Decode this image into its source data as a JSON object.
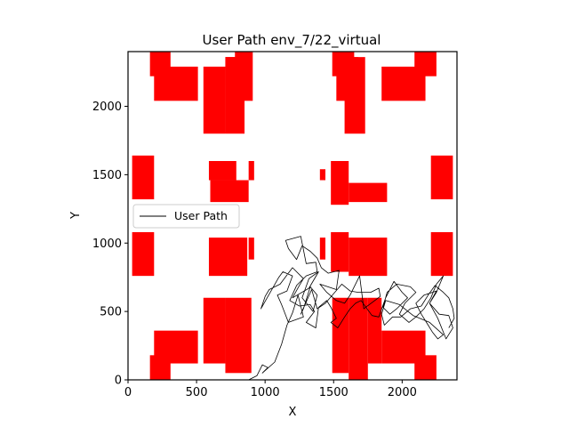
{
  "chart_data": {
    "type": "line",
    "title": "User Path env_7/22_virtual",
    "xlabel": "X",
    "ylabel": "Y",
    "xlim": [
      0,
      2400
    ],
    "ylim": [
      0,
      2400
    ],
    "xticks": [
      0,
      500,
      1000,
      1500,
      2000
    ],
    "yticks": [
      0,
      500,
      1000,
      1500,
      2000
    ],
    "grid": false,
    "legend": {
      "position": "center-left",
      "entries": [
        "User Path"
      ]
    },
    "colors": {
      "obstacle": "#ff0000",
      "path": "#000000"
    },
    "obstacles": [
      [
        160,
        2220,
        150,
        180
      ],
      [
        190,
        2040,
        320,
        250
      ],
      [
        550,
        1800,
        160,
        490
      ],
      [
        710,
        1800,
        140,
        560
      ],
      [
        710,
        2160,
        70,
        200
      ],
      [
        780,
        2040,
        130,
        360
      ],
      [
        1490,
        2220,
        120,
        180
      ],
      [
        1520,
        2040,
        130,
        360
      ],
      [
        1580,
        1800,
        150,
        560
      ],
      [
        1610,
        2160,
        70,
        200
      ],
      [
        1850,
        2040,
        320,
        250
      ],
      [
        2090,
        2220,
        160,
        180
      ],
      [
        30,
        1320,
        160,
        320
      ],
      [
        590,
        1460,
        200,
        140
      ],
      [
        600,
        1300,
        280,
        160
      ],
      [
        880,
        1460,
        40,
        140
      ],
      [
        1400,
        1460,
        40,
        80
      ],
      [
        1480,
        1280,
        130,
        320
      ],
      [
        1610,
        1300,
        280,
        140
      ],
      [
        2210,
        1320,
        160,
        320
      ],
      [
        30,
        760,
        160,
        320
      ],
      [
        590,
        760,
        280,
        280
      ],
      [
        880,
        880,
        40,
        160
      ],
      [
        1400,
        880,
        40,
        160
      ],
      [
        1480,
        790,
        130,
        290
      ],
      [
        1610,
        760,
        280,
        280
      ],
      [
        2210,
        760,
        160,
        320
      ],
      [
        190,
        120,
        320,
        240
      ],
      [
        550,
        120,
        160,
        480
      ],
      [
        710,
        50,
        190,
        550
      ],
      [
        900,
        150,
        0,
        0
      ],
      [
        160,
        0,
        150,
        180
      ],
      [
        1490,
        50,
        120,
        550
      ],
      [
        1610,
        0,
        140,
        600
      ],
      [
        1750,
        120,
        100,
        480
      ],
      [
        1850,
        120,
        320,
        240
      ],
      [
        2090,
        0,
        160,
        180
      ]
    ],
    "path": [
      [
        880,
        0
      ],
      [
        940,
        30
      ],
      [
        980,
        110
      ],
      [
        1020,
        90
      ],
      [
        980,
        50
      ],
      [
        1070,
        130
      ],
      [
        1120,
        260
      ],
      [
        1160,
        400
      ],
      [
        1200,
        490
      ],
      [
        1240,
        620
      ],
      [
        1280,
        460
      ],
      [
        1170,
        420
      ],
      [
        1120,
        550
      ],
      [
        1090,
        620
      ],
      [
        1160,
        650
      ],
      [
        1200,
        760
      ],
      [
        1130,
        790
      ],
      [
        1100,
        750
      ],
      [
        970,
        520
      ],
      [
        1000,
        610
      ],
      [
        1030,
        660
      ],
      [
        1110,
        700
      ],
      [
        1200,
        820
      ],
      [
        1280,
        740
      ],
      [
        1250,
        690
      ],
      [
        1200,
        600
      ],
      [
        1320,
        670
      ],
      [
        1390,
        790
      ],
      [
        1320,
        740
      ],
      [
        1270,
        600
      ],
      [
        1350,
        500
      ],
      [
        1380,
        620
      ],
      [
        1330,
        680
      ],
      [
        1280,
        520
      ],
      [
        1260,
        480
      ],
      [
        1340,
        660
      ],
      [
        1380,
        520
      ],
      [
        1440,
        560
      ],
      [
        1560,
        700
      ],
      [
        1620,
        650
      ],
      [
        1680,
        640
      ],
      [
        1770,
        640
      ],
      [
        1830,
        670
      ],
      [
        1840,
        610
      ],
      [
        1720,
        520
      ],
      [
        1690,
        760
      ],
      [
        1620,
        620
      ],
      [
        1580,
        560
      ],
      [
        1520,
        580
      ],
      [
        1450,
        640
      ],
      [
        1400,
        700
      ],
      [
        1520,
        660
      ],
      [
        1540,
        800
      ],
      [
        1460,
        780
      ],
      [
        1410,
        820
      ],
      [
        1380,
        890
      ],
      [
        1330,
        940
      ],
      [
        1270,
        980
      ],
      [
        1230,
        880
      ],
      [
        1170,
        960
      ],
      [
        1150,
        1020
      ],
      [
        1260,
        1050
      ],
      [
        1300,
        850
      ],
      [
        1370,
        860
      ],
      [
        1380,
        790
      ],
      [
        1300,
        760
      ],
      [
        1230,
        690
      ],
      [
        1180,
        580
      ],
      [
        1250,
        540
      ],
      [
        1330,
        550
      ],
      [
        1360,
        500
      ],
      [
        1300,
        420
      ],
      [
        1370,
        380
      ],
      [
        1390,
        530
      ],
      [
        1450,
        580
      ],
      [
        1480,
        530
      ],
      [
        1520,
        450
      ],
      [
        1480,
        420
      ],
      [
        1530,
        380
      ],
      [
        1580,
        460
      ],
      [
        1620,
        520
      ],
      [
        1660,
        560
      ],
      [
        1700,
        580
      ],
      [
        1780,
        470
      ],
      [
        1830,
        460
      ],
      [
        1880,
        600
      ],
      [
        1940,
        720
      ],
      [
        2000,
        640
      ],
      [
        2040,
        600
      ],
      [
        1960,
        520
      ],
      [
        1910,
        480
      ],
      [
        1860,
        530
      ],
      [
        1890,
        640
      ],
      [
        1960,
        700
      ],
      [
        2060,
        680
      ],
      [
        2100,
        640
      ],
      [
        2020,
        560
      ],
      [
        1980,
        480
      ],
      [
        2050,
        420
      ],
      [
        2100,
        460
      ],
      [
        2160,
        520
      ],
      [
        2210,
        600
      ],
      [
        2250,
        700
      ],
      [
        2300,
        760
      ],
      [
        2250,
        640
      ],
      [
        2200,
        560
      ],
      [
        2270,
        480
      ],
      [
        2340,
        470
      ],
      [
        2370,
        380
      ],
      [
        2320,
        300
      ],
      [
        2260,
        450
      ],
      [
        2200,
        560
      ],
      [
        2250,
        650
      ],
      [
        2160,
        620
      ],
      [
        2100,
        560
      ],
      [
        2140,
        480
      ],
      [
        2190,
        400
      ],
      [
        2220,
        350
      ],
      [
        2260,
        300
      ],
      [
        2300,
        330
      ],
      [
        2200,
        420
      ],
      [
        2080,
        470
      ],
      [
        1980,
        550
      ],
      [
        1880,
        580
      ],
      [
        1850,
        480
      ],
      [
        1870,
        400
      ],
      [
        1930,
        460
      ],
      [
        1990,
        460
      ],
      [
        2060,
        520
      ],
      [
        2140,
        540
      ],
      [
        2190,
        620
      ],
      [
        2240,
        690
      ],
      [
        2300,
        640
      ],
      [
        2340,
        600
      ],
      [
        2370,
        520
      ],
      [
        2380,
        450
      ],
      [
        2340,
        380
      ]
    ]
  }
}
